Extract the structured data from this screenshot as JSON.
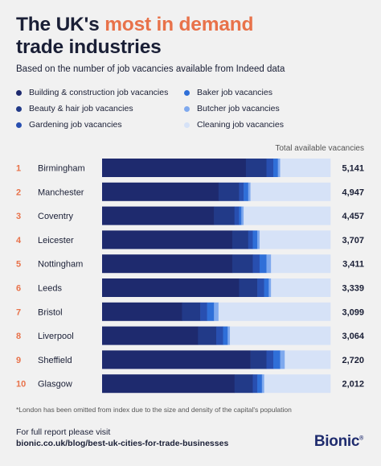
{
  "header": {
    "title_part1": "The UK's ",
    "title_accent": "most in demand",
    "title_part2": "trade industries",
    "subtitle": "Based on the number of job vacancies available from Indeed data"
  },
  "legend": [
    {
      "label": "Building & construction job vacancies",
      "color": "#1e2a6e"
    },
    {
      "label": "Baker job vacancies",
      "color": "#2f6fd8"
    },
    {
      "label": "Beauty & hair job vacancies",
      "color": "#223a88"
    },
    {
      "label": "Butcher job vacancies",
      "color": "#7fa9ee"
    },
    {
      "label": "Gardening job vacancies",
      "color": "#284fb0"
    },
    {
      "label": "Cleaning job vacancies",
      "color": "#d6e2f7"
    }
  ],
  "total_label": "Total available vacancies",
  "chart_data": {
    "type": "bar",
    "orientation": "horizontal",
    "stacked": true,
    "normalized": true,
    "ranks": [
      "1",
      "2",
      "3",
      "4",
      "5",
      "6",
      "7",
      "8",
      "9",
      "10"
    ],
    "categories": [
      "Birmingham",
      "Manchester",
      "Coventry",
      "Leicester",
      "Nottingham",
      "Leeds",
      "Bristol",
      "Liverpool",
      "Sheffield",
      "Glasgow"
    ],
    "totals": [
      "5,141",
      "4,947",
      "4,457",
      "3,707",
      "3,411",
      "3,339",
      "3,099",
      "3,064",
      "2,720",
      "2,012"
    ],
    "series": [
      {
        "name": "Building & construction job vacancies",
        "color": "#1e2a6e",
        "values": [
          63,
          51,
          49,
          57,
          57,
          60,
          35,
          42,
          65,
          58
        ]
      },
      {
        "name": "Beauty & hair job vacancies",
        "color": "#223a88",
        "values": [
          9,
          9,
          9,
          7,
          9,
          8,
          8,
          8,
          7,
          8
        ]
      },
      {
        "name": "Gardening job vacancies",
        "color": "#284fb0",
        "values": [
          3,
          2,
          2,
          2,
          3,
          3,
          3,
          3,
          3,
          2
        ]
      },
      {
        "name": "Baker job vacancies",
        "color": "#2f6fd8",
        "values": [
          2,
          2,
          1,
          2,
          3,
          2,
          3,
          2,
          3,
          2
        ]
      },
      {
        "name": "Butcher job vacancies",
        "color": "#7fa9ee",
        "values": [
          1,
          1,
          1,
          1,
          2,
          1,
          2,
          1,
          2,
          1
        ]
      },
      {
        "name": "Cleaning job vacancies",
        "color": "#d6e2f7",
        "values": [
          22,
          35,
          38,
          31,
          26,
          26,
          49,
          44,
          20,
          29
        ]
      }
    ]
  },
  "footnote": "*London has been omitted from index due to the size and density of the capital's population",
  "footer": {
    "cta": "For full report please visit",
    "link": "bionic.co.uk/blog/best-uk-cities-for-trade-businesses"
  },
  "logo": {
    "text": "Bionic",
    "mark": "®"
  }
}
